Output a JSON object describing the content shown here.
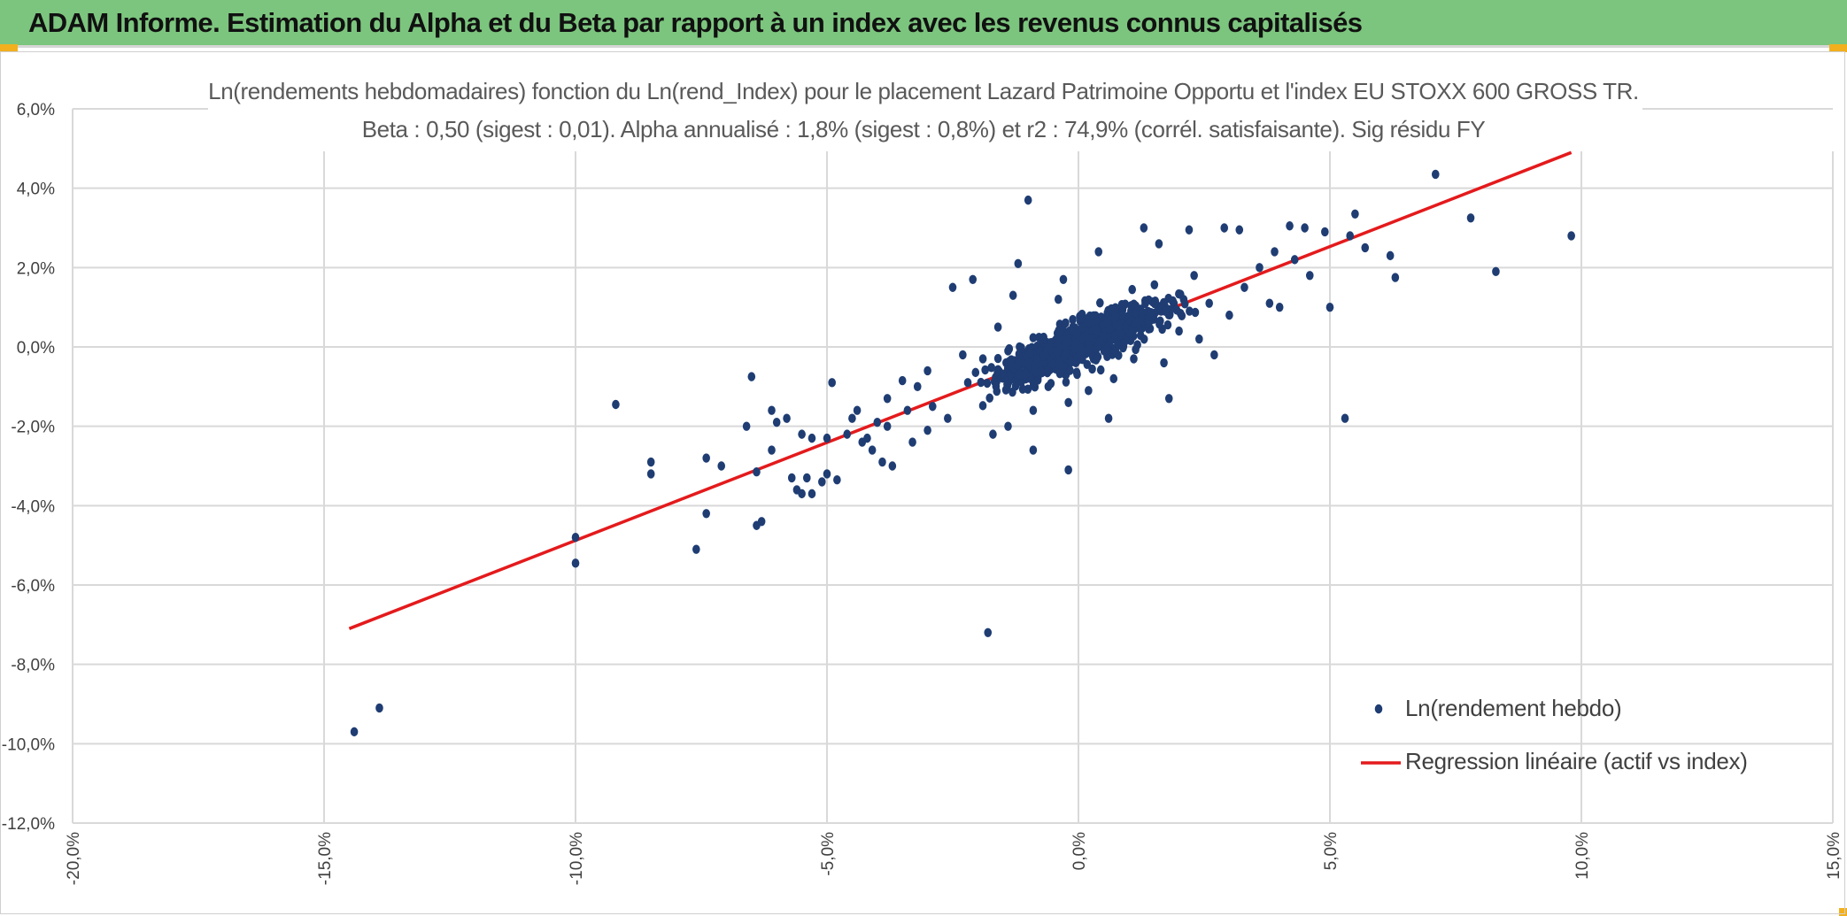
{
  "header": {
    "title": "ADAM Informe. Estimation du Alpha et du Beta par rapport à un index avec les revenus connus capitalisés",
    "background": "#7cc57e",
    "corner_color": "#f2b01e"
  },
  "chart_data": {
    "type": "scatter",
    "title": "Ln(rendements hebdomadaires) fonction du Ln(rend_Index) pour le placement Lazard Patrimoine Opportu et l'index EU STOXX 600 GROSS TR.",
    "subtitle": "Beta : 0,50 (sigest : 0,01). Alpha annualisé : 1,8% (sigest : 0,8%) et r2 : 74,9% (corrél. satisfaisante). Sig résidu FY",
    "xlabel": "",
    "ylabel": "",
    "xlim": [
      -20,
      15
    ],
    "ylim": [
      -12,
      6
    ],
    "x_ticks": [
      -20,
      -15,
      -10,
      -5,
      0,
      5,
      10,
      15
    ],
    "y_ticks": [
      -12,
      -10,
      -8,
      -6,
      -4,
      -2,
      0,
      2,
      4,
      6
    ],
    "x_tick_labels": [
      "-20,0%",
      "-15,0%",
      "-10,0%",
      "-5,0%",
      "0,0%",
      "5,0%",
      "10,0%",
      "15,0%"
    ],
    "y_tick_labels": [
      "-12,0%",
      "-10,0%",
      "-8,0%",
      "-6,0%",
      "-4,0%",
      "-2,0%",
      "0,0%",
      "2,0%",
      "4,0%",
      "6,0%"
    ],
    "grid": true,
    "legend_position": "bottom-right",
    "series": [
      {
        "name": "Ln(rendement hebdo)",
        "kind": "scatter",
        "color": "#1f3d73",
        "points": [
          [
            7.1,
            4.35
          ],
          [
            -1.0,
            3.7
          ],
          [
            9.8,
            2.8
          ],
          [
            7.8,
            3.25
          ],
          [
            8.3,
            1.9
          ],
          [
            5.3,
            -1.8
          ],
          [
            -1.8,
            -7.2
          ],
          [
            -14.4,
            -9.7
          ],
          [
            -13.9,
            -9.1
          ],
          [
            -10.0,
            -4.8
          ],
          [
            -10.0,
            -5.45
          ],
          [
            -9.2,
            -1.45
          ],
          [
            -8.5,
            -2.9
          ],
          [
            -8.5,
            -3.2
          ],
          [
            -7.6,
            -5.1
          ],
          [
            -7.4,
            -4.2
          ],
          [
            -7.4,
            -2.8
          ],
          [
            -7.1,
            -3.0
          ],
          [
            -6.6,
            -2.0
          ],
          [
            -6.5,
            -0.75
          ],
          [
            -6.4,
            -4.5
          ],
          [
            -6.3,
            -4.4
          ],
          [
            -6.4,
            -3.15
          ],
          [
            -6.1,
            -1.6
          ],
          [
            -6.0,
            -1.9
          ],
          [
            -6.1,
            -2.6
          ],
          [
            -5.8,
            -1.8
          ],
          [
            -5.7,
            -3.3
          ],
          [
            -5.6,
            -3.6
          ],
          [
            -5.5,
            -3.7
          ],
          [
            -5.4,
            -3.3
          ],
          [
            -5.3,
            -3.7
          ],
          [
            -5.5,
            -2.2
          ],
          [
            -5.3,
            -2.3
          ],
          [
            -5.1,
            -3.4
          ],
          [
            -5.0,
            -3.2
          ],
          [
            -4.8,
            -3.35
          ],
          [
            -5.0,
            -2.3
          ],
          [
            -4.9,
            -0.9
          ],
          [
            -4.6,
            -2.2
          ],
          [
            -4.5,
            -1.8
          ],
          [
            -4.3,
            -2.4
          ],
          [
            -4.2,
            -2.3
          ],
          [
            -4.1,
            -2.6
          ],
          [
            -4.0,
            -1.9
          ],
          [
            -3.9,
            -2.9
          ],
          [
            -3.8,
            -2.0
          ],
          [
            -3.7,
            -3.0
          ],
          [
            -3.5,
            -0.85
          ],
          [
            -3.4,
            -1.6
          ],
          [
            -3.3,
            -2.4
          ],
          [
            -3.2,
            -1.0
          ],
          [
            -3.0,
            -2.1
          ],
          [
            -2.9,
            -1.5
          ],
          [
            -2.6,
            -1.8
          ],
          [
            -2.5,
            1.5
          ],
          [
            -2.1,
            1.7
          ],
          [
            -1.2,
            2.1
          ],
          [
            -0.9,
            -2.6
          ],
          [
            -0.2,
            -3.1
          ],
          [
            0.6,
            -1.8
          ],
          [
            1.8,
            -1.3
          ],
          [
            2.7,
            -0.2
          ],
          [
            4.0,
            1.0
          ],
          [
            5.0,
            1.0
          ],
          [
            5.7,
            2.5
          ],
          [
            6.2,
            2.3
          ],
          [
            6.3,
            1.75
          ],
          [
            4.5,
            3.0
          ],
          [
            4.9,
            2.9
          ],
          [
            5.4,
            2.8
          ],
          [
            5.5,
            3.35
          ],
          [
            4.2,
            3.05
          ],
          [
            3.2,
            2.95
          ],
          [
            2.9,
            3.0
          ],
          [
            1.3,
            3.0
          ],
          [
            2.2,
            2.95
          ],
          [
            1.6,
            2.6
          ],
          [
            0.4,
            2.4
          ],
          [
            -0.3,
            1.7
          ],
          [
            -1.3,
            1.3
          ],
          [
            -0.4,
            1.2
          ],
          [
            -1.6,
            0.5
          ],
          [
            -1.9,
            -0.3
          ],
          [
            -2.3,
            -0.2
          ],
          [
            -1.4,
            -0.1
          ],
          [
            -3.8,
            -1.3
          ],
          [
            -4.4,
            -1.6
          ],
          [
            -3.0,
            -0.6
          ],
          [
            -2.2,
            -0.9
          ],
          [
            -1.7,
            -2.2
          ],
          [
            -1.4,
            -2.0
          ],
          [
            -0.9,
            -1.6
          ],
          [
            -0.6,
            -1.0
          ],
          [
            -0.2,
            -1.4
          ],
          [
            0.2,
            -1.1
          ],
          [
            0.7,
            -0.8
          ],
          [
            1.1,
            -0.3
          ],
          [
            1.5,
            0.7
          ],
          [
            2.0,
            0.4
          ],
          [
            2.3,
            1.8
          ],
          [
            2.6,
            1.1
          ],
          [
            3.0,
            0.8
          ],
          [
            3.3,
            1.5
          ],
          [
            3.6,
            2.0
          ],
          [
            3.9,
            2.4
          ],
          [
            4.3,
            2.2
          ],
          [
            4.6,
            1.8
          ],
          [
            3.8,
            1.1
          ],
          [
            2.4,
            0.2
          ],
          [
            1.7,
            -0.4
          ]
        ]
      },
      {
        "name": "Regression linéaire (actif vs index)",
        "kind": "line",
        "color": "#e41a1c",
        "points": [
          [
            -14.5,
            -7.1
          ],
          [
            9.8,
            4.9
          ]
        ]
      }
    ]
  },
  "legend": {
    "scatter_label": "Ln(rendement hebdo)",
    "line_label": "Regression linéaire (actif vs index)"
  }
}
